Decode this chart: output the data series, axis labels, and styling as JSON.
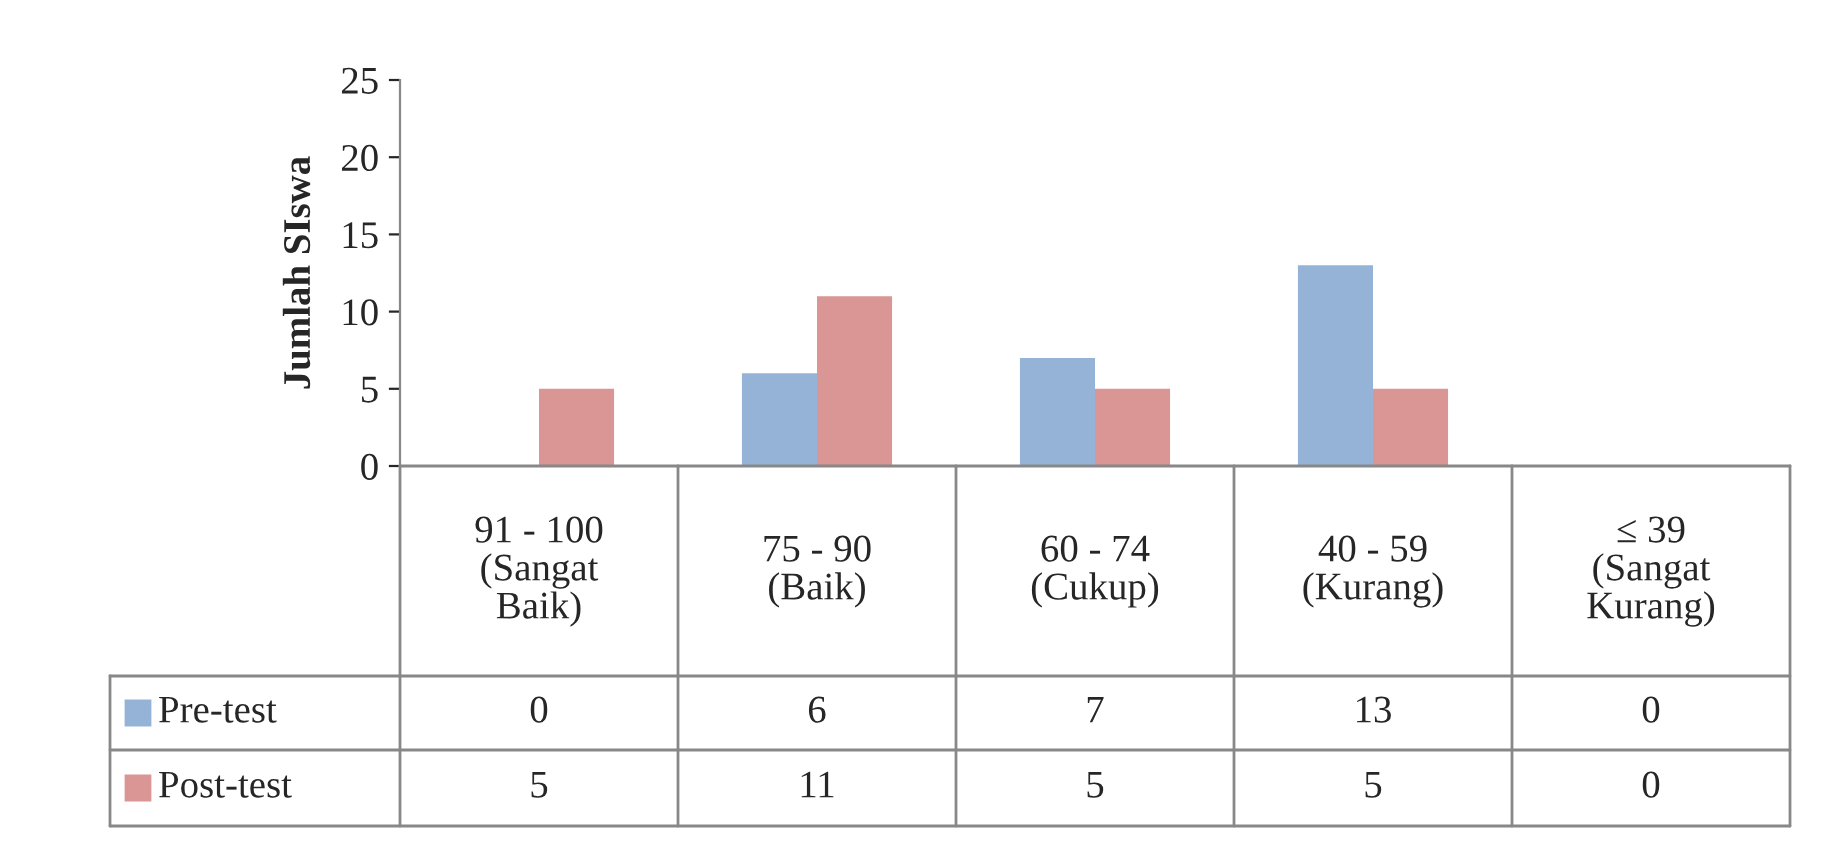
{
  "chart_data": {
    "type": "bar",
    "ylabel": "Jumlah SIswa",
    "categories": [
      "91 - 100\n(Sangat\nBaik)",
      "75 - 90\n(Baik)",
      "60 - 74\n(Cukup)",
      "40 - 59\n(Kurang)",
      "≤ 39\n(Sangat\nKurang)"
    ],
    "series": [
      {
        "name": "Pre-test",
        "color": "#95b3d7",
        "values": [
          0,
          6,
          7,
          13,
          0
        ]
      },
      {
        "name": "Post-test",
        "color": "#d99694",
        "values": [
          5,
          11,
          5,
          5,
          0
        ]
      }
    ],
    "ylim": [
      0,
      25
    ],
    "yticks": [
      0,
      5,
      10,
      15,
      20,
      25
    ],
    "grid": false,
    "legend": "bottom",
    "data_labels": true
  }
}
